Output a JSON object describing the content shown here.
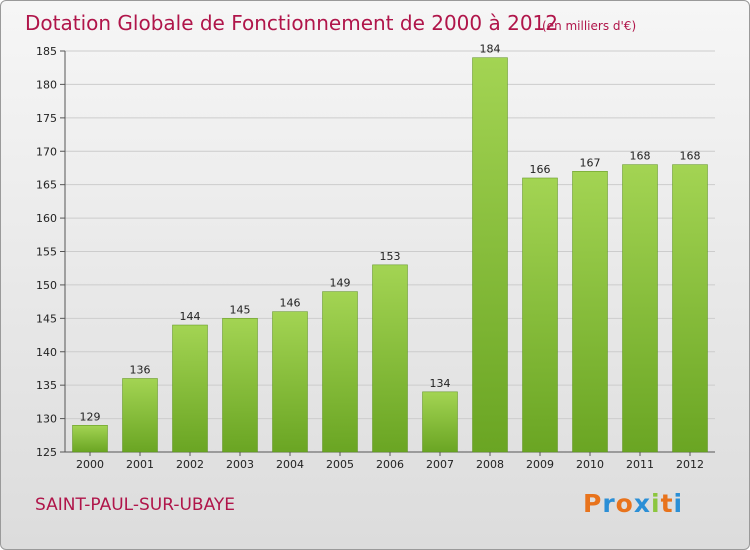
{
  "colors": {
    "bar_light": "#a3d453",
    "bar_dark": "#6aa523",
    "title": "#b0154a",
    "grid": "#cccccc",
    "commune": "#b0154a"
  },
  "header": {
    "title": "Dotation Globale de Fonctionnement de 2000 à 2012",
    "unit_note": "(en milliers d'€)"
  },
  "footer": {
    "commune": "SAINT-PAUL-SUR-UBAYE",
    "logo_text": "Proxiti",
    "logo_letter_colors": [
      "#e8731c",
      "#2b8fd6",
      "#e8731c",
      "#2b8fd6",
      "#8cc63f",
      "#e8731c",
      "#2b8fd6"
    ]
  },
  "chart_data": {
    "type": "bar",
    "title": "Dotation Globale de Fonctionnement de 2000 à 2012",
    "subtitle": "(en milliers d'€)",
    "xlabel": "",
    "ylabel": "",
    "categories": [
      "2000",
      "2001",
      "2002",
      "2003",
      "2004",
      "2005",
      "2006",
      "2007",
      "2008",
      "2009",
      "2010",
      "2011",
      "2012"
    ],
    "values": [
      129,
      136,
      144,
      145,
      146,
      149,
      153,
      134,
      184,
      166,
      167,
      168,
      168
    ],
    "ylim": [
      125,
      185
    ],
    "yticks": [
      125,
      130,
      135,
      140,
      145,
      150,
      155,
      160,
      165,
      170,
      175,
      180,
      185
    ],
    "grid": true,
    "legend": "none"
  }
}
